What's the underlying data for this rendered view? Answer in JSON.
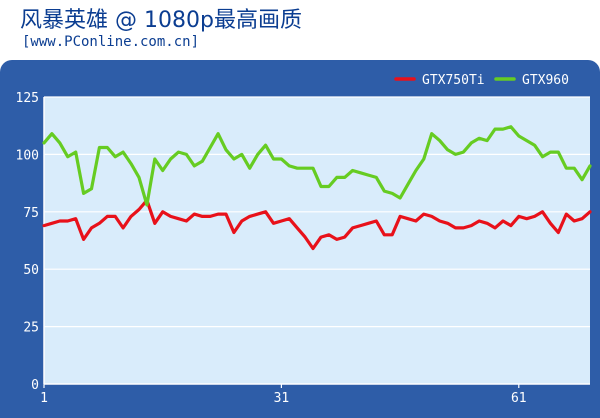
{
  "header": {
    "title": "风暴英雄 @ 1080p最高画质",
    "subtitle": "[www.PConline.com.cn]"
  },
  "colors": {
    "background_panel": "#2e5da8",
    "plot_area": "#d9ecfb",
    "grid": "#ffffff",
    "title_text": "#0b3d91",
    "axis_text": "#ffffff"
  },
  "chart_data": {
    "type": "line",
    "x": [
      1,
      2,
      3,
      4,
      5,
      6,
      7,
      8,
      9,
      10,
      11,
      12,
      13,
      14,
      15,
      16,
      17,
      18,
      19,
      20,
      21,
      22,
      23,
      24,
      25,
      26,
      27,
      28,
      29,
      30,
      31,
      32,
      33,
      34,
      35,
      36,
      37,
      38,
      39,
      40,
      41,
      42,
      43,
      44,
      45,
      46,
      47,
      48,
      49,
      50,
      51,
      52,
      53,
      54,
      55,
      56,
      57,
      58,
      59,
      60,
      61,
      62,
      63,
      64,
      65,
      66,
      67,
      68,
      69,
      70
    ],
    "xticks": [
      "1",
      "31",
      "61"
    ],
    "ylim": [
      0,
      125
    ],
    "yticks": [
      "0",
      "25",
      "50",
      "75",
      "100",
      "125"
    ],
    "grid": true,
    "legend": "top-right",
    "series": [
      {
        "name": "GTX750Ti",
        "color": "#e8111a",
        "values": [
          69,
          70,
          71,
          71,
          72,
          63,
          68,
          70,
          73,
          73,
          68,
          73,
          76,
          80,
          70,
          75,
          73,
          72,
          71,
          74,
          73,
          73,
          74,
          74,
          66,
          71,
          73,
          74,
          75,
          70,
          71,
          72,
          68,
          64,
          59,
          64,
          65,
          63,
          64,
          68,
          69,
          70,
          71,
          65,
          65,
          73,
          72,
          71,
          74,
          73,
          71,
          70,
          68,
          68,
          69,
          71,
          70,
          68,
          71,
          69,
          73,
          72,
          73,
          75,
          70,
          66,
          74,
          71,
          72,
          75
        ]
      },
      {
        "name": "GTX960",
        "color": "#66cc22",
        "values": [
          105,
          109,
          105,
          99,
          101,
          83,
          85,
          103,
          103,
          99,
          101,
          96,
          90,
          78,
          98,
          93,
          98,
          101,
          100,
          95,
          97,
          103,
          109,
          102,
          98,
          100,
          94,
          100,
          104,
          98,
          98,
          95,
          94,
          94,
          94,
          86,
          86,
          90,
          90,
          93,
          92,
          91,
          90,
          84,
          83,
          81,
          87,
          93,
          98,
          109,
          106,
          102,
          100,
          101,
          105,
          107,
          106,
          111,
          111,
          112,
          108,
          106,
          104,
          99,
          101,
          101,
          94,
          94,
          89,
          95
        ]
      }
    ]
  }
}
